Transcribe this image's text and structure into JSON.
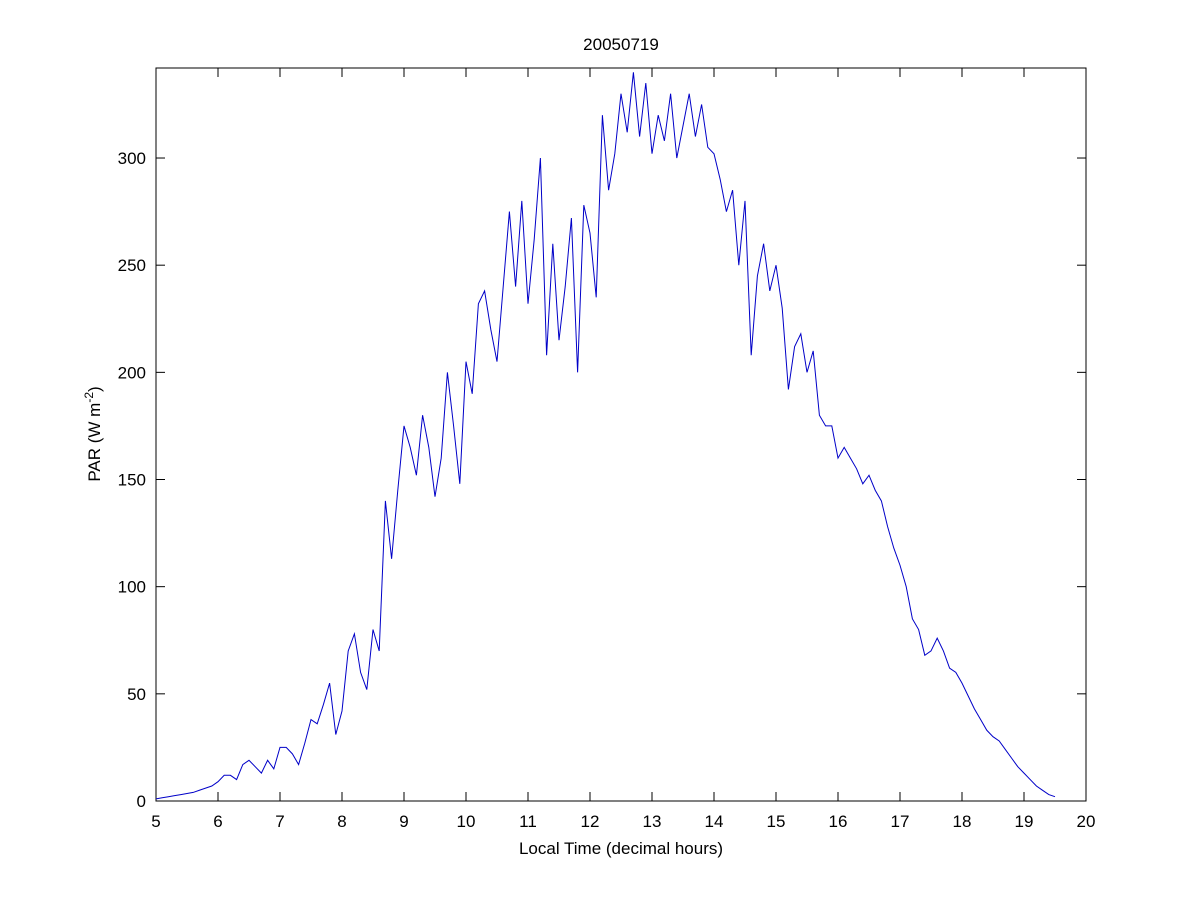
{
  "chart_data": {
    "type": "line",
    "title": "20050719",
    "x_label": "Local Time (decimal hours)",
    "y_label": "PAR (W m",
    "y_label_superscript": "-2",
    "y_label_end": ")",
    "x": [
      5.0,
      5.1,
      5.2,
      5.3,
      5.4,
      5.5,
      5.6,
      5.7,
      5.8,
      5.9,
      6.0,
      6.1,
      6.2,
      6.3,
      6.4,
      6.5,
      6.6,
      6.7,
      6.8,
      6.9,
      7.0,
      7.1,
      7.2,
      7.3,
      7.4,
      7.5,
      7.6,
      7.7,
      7.8,
      7.9,
      8.0,
      8.1,
      8.2,
      8.3,
      8.4,
      8.5,
      8.6,
      8.7,
      8.8,
      8.9,
      9.0,
      9.1,
      9.2,
      9.3,
      9.4,
      9.5,
      9.6,
      9.7,
      9.8,
      9.9,
      10.0,
      10.1,
      10.2,
      10.3,
      10.4,
      10.5,
      10.6,
      10.7,
      10.8,
      10.9,
      11.0,
      11.1,
      11.2,
      11.3,
      11.4,
      11.5,
      11.6,
      11.7,
      11.8,
      11.9,
      12.0,
      12.1,
      12.2,
      12.3,
      12.4,
      12.5,
      12.6,
      12.7,
      12.8,
      12.9,
      13.0,
      13.1,
      13.2,
      13.3,
      13.4,
      13.5,
      13.6,
      13.7,
      13.8,
      13.9,
      14.0,
      14.1,
      14.2,
      14.3,
      14.4,
      14.5,
      14.6,
      14.7,
      14.8,
      14.9,
      15.0,
      15.1,
      15.2,
      15.3,
      15.4,
      15.5,
      15.6,
      15.7,
      15.8,
      15.9,
      16.0,
      16.1,
      16.2,
      16.3,
      16.4,
      16.5,
      16.6,
      16.7,
      16.8,
      16.9,
      17.0,
      17.1,
      17.2,
      17.3,
      17.4,
      17.5,
      17.6,
      17.7,
      17.8,
      17.9,
      18.0,
      18.1,
      18.2,
      18.3,
      18.4,
      18.5,
      18.6,
      18.7,
      18.8,
      18.9,
      19.0,
      19.1,
      19.2,
      19.3,
      19.4,
      19.5
    ],
    "series": [
      {
        "color": "#0000c8",
        "values": [
          1,
          1.5,
          2,
          2.5,
          3,
          3.5,
          4,
          5,
          6,
          7,
          9,
          12,
          12,
          10,
          17,
          19,
          16,
          13,
          19,
          15,
          25,
          25,
          22,
          17,
          27,
          38,
          36,
          45,
          55,
          31,
          42,
          70,
          78,
          60,
          52,
          80,
          70,
          140,
          113,
          145,
          175,
          165,
          152,
          180,
          165,
          142,
          160,
          200,
          175,
          148,
          205,
          190,
          232,
          238,
          220,
          205,
          240,
          275,
          240,
          280,
          232,
          262,
          300,
          208,
          260,
          215,
          240,
          272,
          200,
          278,
          265,
          235,
          320,
          285,
          302,
          330,
          312,
          340,
          310,
          335,
          302,
          320,
          308,
          330,
          300,
          315,
          330,
          310,
          325,
          305,
          302,
          290,
          275,
          285,
          250,
          280,
          208,
          245,
          260,
          238,
          250,
          230,
          192,
          212,
          218,
          200,
          210,
          180,
          175,
          175,
          160,
          165,
          160,
          155,
          148,
          152,
          145,
          140,
          128,
          118,
          110,
          100,
          85,
          80,
          68,
          70,
          76,
          70,
          62,
          60,
          55,
          49,
          43,
          38,
          33,
          30,
          28,
          24,
          20,
          16,
          13,
          10,
          7,
          5,
          3,
          2
        ]
      }
    ],
    "xlim": [
      5,
      20
    ],
    "ylim": [
      0,
      342
    ],
    "xticks": [
      5,
      6,
      7,
      8,
      9,
      10,
      11,
      12,
      13,
      14,
      15,
      16,
      17,
      18,
      19,
      20
    ],
    "yticks": [
      0,
      50,
      100,
      150,
      200,
      250,
      300
    ]
  }
}
